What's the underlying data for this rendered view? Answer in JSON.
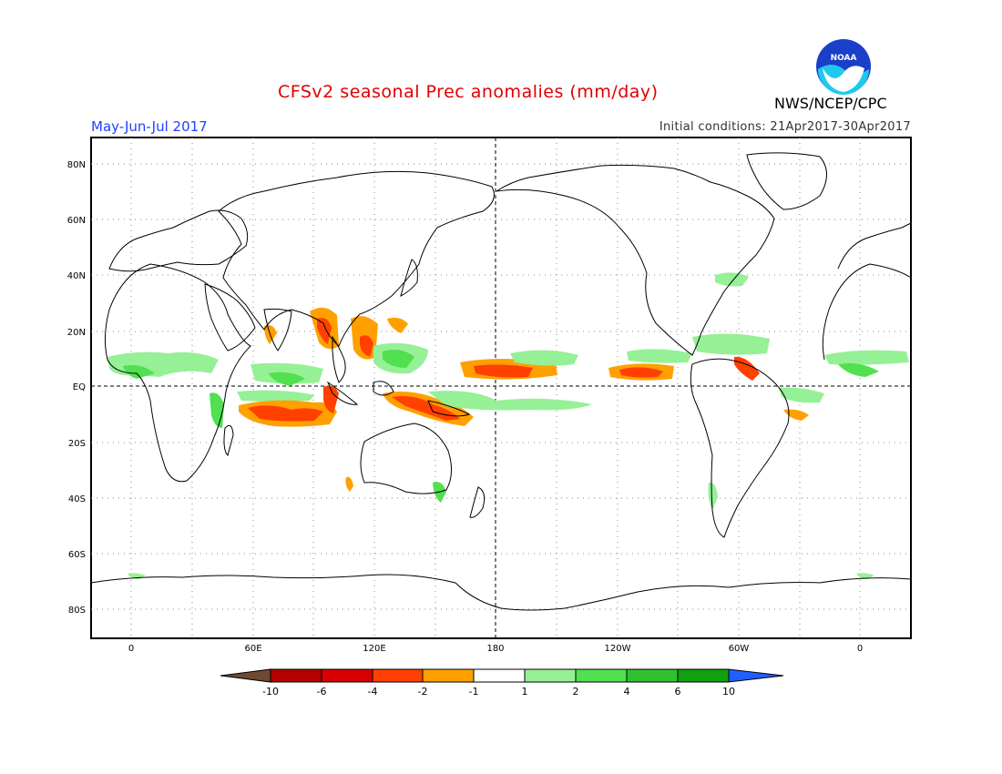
{
  "header": {
    "title": "CFSv2 seasonal Prec anomalies (mm/day)",
    "period": "May-Jun-Jul 2017",
    "initial_conditions": "Initial conditions: 21Apr2017-30Apr2017",
    "agency": "NWS/NCEP/CPC",
    "logo_text": "NOAA"
  },
  "map": {
    "lat_labels": [
      "80N",
      "60N",
      "40N",
      "20N",
      "EQ",
      "20S",
      "40S",
      "60S",
      "80S"
    ],
    "lon_labels": [
      "0",
      "60E",
      "120E",
      "180",
      "120W",
      "60W",
      "0"
    ]
  },
  "legend": {
    "labels": [
      "-10",
      "-6",
      "-4",
      "-2",
      "-1",
      "1",
      "2",
      "4",
      "6",
      "10"
    ],
    "colors": [
      "#6e4a32",
      "#b40000",
      "#d80000",
      "#ff4000",
      "#ffa000",
      "#ffffff",
      "#96f096",
      "#50e050",
      "#30c030",
      "#10a010",
      "#2060ff"
    ]
  }
}
